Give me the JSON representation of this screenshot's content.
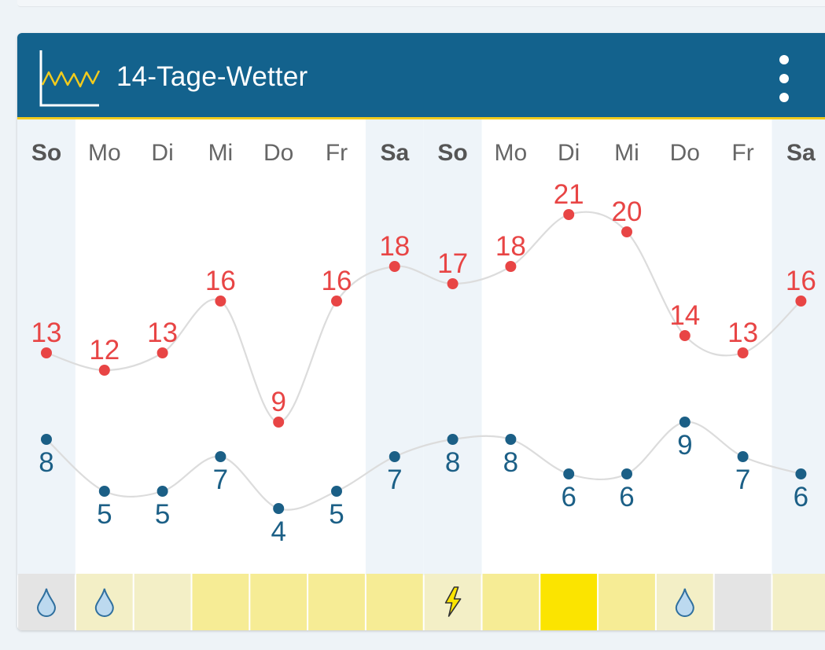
{
  "widget": {
    "title": "14-Tage-Wetter",
    "menu_icon": "more-vertical-icon",
    "logo_icon": "temperature-chart-icon"
  },
  "colors": {
    "header_bg": "#13628d",
    "accent_line": "#f2cb1d",
    "max_temp": "#e84545",
    "min_temp": "#1b5f86",
    "weekend_shade": "#eef4f9",
    "curve": "#dcdcdc"
  },
  "chart_data": {
    "type": "line",
    "categories": [
      "So",
      "Mo",
      "Di",
      "Mi",
      "Do",
      "Fr",
      "Sa",
      "So",
      "Mo",
      "Di",
      "Mi",
      "Do",
      "Fr",
      "Sa"
    ],
    "weekend": [
      true,
      false,
      false,
      false,
      false,
      false,
      true,
      true,
      false,
      false,
      false,
      false,
      false,
      true
    ],
    "series": [
      {
        "values": [
          13,
          12,
          13,
          16,
          9,
          16,
          18,
          17,
          18,
          21,
          20,
          14,
          13,
          16
        ],
        "color": "#e84545"
      },
      {
        "values": [
          8,
          5,
          5,
          7,
          4,
          5,
          7,
          8,
          8,
          6,
          6,
          9,
          7,
          6
        ],
        "color": "#1b5f86"
      }
    ],
    "ylim": [
      3,
      22
    ],
    "grid": false,
    "legend": "none",
    "precipitation_row": {
      "colors": [
        "#e4e4e4",
        "#f3efc6",
        "#f3efc6",
        "#f6ec95",
        "#f6ec95",
        "#f6ec95",
        "#f6ec95",
        "#f3efc6",
        "#f6ec95",
        "#fbe400",
        "#f6ec95",
        "#f3efc6",
        "#e4e4e4",
        "#f3efc6"
      ],
      "icons": [
        "raindrop-icon",
        "raindrop-icon",
        "",
        "",
        "",
        "",
        "",
        "lightning-icon",
        "",
        "",
        "",
        "raindrop-icon",
        "",
        ""
      ]
    }
  }
}
